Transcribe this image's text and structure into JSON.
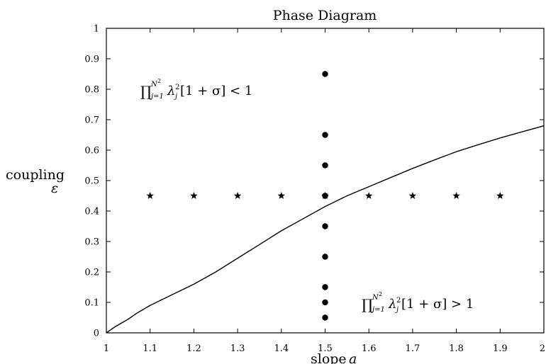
{
  "chart_data": {
    "type": "scatter",
    "title": "Phase Diagram",
    "xlabel": "slope a",
    "ylabel": "coupling ε",
    "xlim": [
      1,
      2
    ],
    "ylim": [
      0,
      1
    ],
    "x_ticks": [
      1,
      1.1,
      1.2,
      1.3,
      1.4,
      1.5,
      1.6,
      1.7,
      1.8,
      1.9,
      2
    ],
    "x_tick_labels": [
      "1",
      "1.1",
      "1.2",
      "1.3",
      "1.4",
      "1.5",
      "1.6",
      "1.7",
      "1.8",
      "1.9",
      "2"
    ],
    "y_ticks": [
      0,
      0.1,
      0.2,
      0.3,
      0.4,
      0.5,
      0.6,
      0.7,
      0.8,
      0.9,
      1
    ],
    "y_tick_labels": [
      "0",
      "0.1",
      "0.2",
      "0.3",
      "0.4",
      "0.5",
      "0.6",
      "0.7",
      "0.8",
      "0.9",
      "1"
    ],
    "grid": false,
    "boundary_curve": {
      "x": [
        1.0,
        1.02,
        1.05,
        1.07,
        1.1,
        1.15,
        1.2,
        1.25,
        1.3,
        1.35,
        1.4,
        1.45,
        1.5,
        1.55,
        1.6,
        1.65,
        1.7,
        1.75,
        1.8,
        1.85,
        1.9,
        1.95,
        2.0
      ],
      "y": [
        0.0,
        0.02,
        0.045,
        0.065,
        0.09,
        0.125,
        0.16,
        0.2,
        0.245,
        0.29,
        0.335,
        0.375,
        0.415,
        0.45,
        0.48,
        0.51,
        0.54,
        0.568,
        0.595,
        0.618,
        0.64,
        0.66,
        0.68
      ]
    },
    "dots": {
      "marker": "circle",
      "x": [
        1.5,
        1.5,
        1.5,
        1.5,
        1.5,
        1.5,
        1.5,
        1.5,
        1.5,
        1.5
      ],
      "y": [
        0.85,
        0.65,
        0.55,
        0.45,
        0.35,
        0.25,
        0.15,
        0.1,
        0.05,
        0.45
      ]
    },
    "stars": {
      "marker": "star",
      "x": [
        1.1,
        1.2,
        1.3,
        1.4,
        1.5,
        1.6,
        1.7,
        1.8,
        1.9
      ],
      "y": [
        0.45,
        0.45,
        0.45,
        0.45,
        0.45,
        0.45,
        0.45,
        0.45,
        0.45
      ]
    },
    "annotations": {
      "upper": {
        "prod": "∏",
        "sub": "j=1",
        "sup": "N",
        "sup_exp": "2",
        "lambda": "λ",
        "lambda_sup": "2",
        "lambda_sub": "j",
        "rest": " [1 + σ] < 1"
      },
      "lower": {
        "prod": "∏",
        "sub": "j=1",
        "sup": "N",
        "sup_exp": "2",
        "lambda": "λ",
        "lambda_sup": "2",
        "lambda_sub": "j",
        "rest": " [1 + σ] > 1"
      }
    }
  },
  "labels": {
    "title": "Phase Diagram",
    "ylabel_word": "coupling",
    "ylabel_symbol": "ε",
    "xlabel_word": "slope",
    "xlabel_symbol": "a"
  }
}
